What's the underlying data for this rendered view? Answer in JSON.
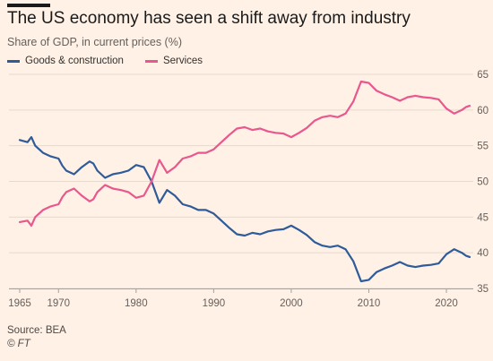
{
  "page": {
    "title": "The US economy has seen a shift away from industry",
    "subtitle": "Share of GDP, in current prices (%)",
    "source": "Source: BEA",
    "credit": "© FT"
  },
  "chart_data": {
    "type": "line",
    "title": "The US economy has seen a shift away from industry",
    "subtitle": "Share of GDP, in current prices (%)",
    "xlim": [
      1965,
      2023
    ],
    "ylim": [
      35,
      65
    ],
    "x_ticks": [
      1965,
      1970,
      1980,
      1990,
      2000,
      2010,
      2020
    ],
    "y_ticks": [
      35,
      40,
      45,
      50,
      55,
      60,
      65
    ],
    "grid": "horizontal",
    "legend_position": "top-left",
    "series": [
      {
        "name": "Goods & construction",
        "color": "#2e5b9a",
        "x": [
          1965,
          1966,
          1966.5,
          1967,
          1968,
          1969,
          1970,
          1970.5,
          1971,
          1972,
          1973,
          1974,
          1974.5,
          1975,
          1976,
          1977,
          1978,
          1979,
          1980,
          1981,
          1982,
          1983,
          1984,
          1985,
          1986,
          1987,
          1988,
          1989,
          1990,
          1991,
          1992,
          1993,
          1994,
          1995,
          1996,
          1997,
          1998,
          1999,
          2000,
          2001,
          2002,
          2003,
          2004,
          2005,
          2006,
          2007,
          2008,
          2009,
          2010,
          2011,
          2012,
          2013,
          2014,
          2015,
          2016,
          2017,
          2018,
          2019,
          2020,
          2021,
          2022,
          2022.5,
          2023
        ],
        "y": [
          55.8,
          55.5,
          56.2,
          55.0,
          54.0,
          53.5,
          53.2,
          52.2,
          51.5,
          51.0,
          52.0,
          52.8,
          52.5,
          51.5,
          50.5,
          51.0,
          51.2,
          51.5,
          52.3,
          52.0,
          50.0,
          47.0,
          48.8,
          48.0,
          46.8,
          46.5,
          46.0,
          46.0,
          45.5,
          44.5,
          43.5,
          42.6,
          42.4,
          42.8,
          42.6,
          43.0,
          43.2,
          43.3,
          43.8,
          43.2,
          42.5,
          41.5,
          41.0,
          40.8,
          41.0,
          40.5,
          38.8,
          36.0,
          36.2,
          37.3,
          37.8,
          38.2,
          38.7,
          38.2,
          38.0,
          38.2,
          38.3,
          38.5,
          39.8,
          40.5,
          40.0,
          39.6,
          39.4
        ]
      },
      {
        "name": "Services",
        "color": "#e8578e",
        "x": [
          1965,
          1966,
          1966.5,
          1967,
          1968,
          1969,
          1970,
          1970.5,
          1971,
          1972,
          1973,
          1974,
          1974.5,
          1975,
          1976,
          1977,
          1978,
          1979,
          1980,
          1981,
          1982,
          1983,
          1984,
          1985,
          1986,
          1987,
          1988,
          1989,
          1990,
          1991,
          1992,
          1993,
          1994,
          1995,
          1996,
          1997,
          1998,
          1999,
          2000,
          2001,
          2002,
          2003,
          2004,
          2005,
          2006,
          2007,
          2008,
          2009,
          2010,
          2011,
          2012,
          2013,
          2014,
          2015,
          2016,
          2017,
          2018,
          2019,
          2020,
          2021,
          2022,
          2022.5,
          2023
        ],
        "y": [
          44.3,
          44.5,
          43.8,
          45.0,
          46.0,
          46.5,
          46.8,
          47.8,
          48.5,
          49.0,
          48.0,
          47.2,
          47.5,
          48.5,
          49.5,
          49.0,
          48.8,
          48.5,
          47.7,
          48.0,
          50.0,
          53.0,
          51.2,
          52.0,
          53.2,
          53.5,
          54.0,
          54.0,
          54.5,
          55.5,
          56.5,
          57.4,
          57.6,
          57.2,
          57.4,
          57.0,
          56.8,
          56.7,
          56.2,
          56.8,
          57.5,
          58.5,
          59.0,
          59.2,
          59.0,
          59.5,
          61.2,
          64.0,
          63.8,
          62.7,
          62.2,
          61.8,
          61.3,
          61.8,
          62.0,
          61.8,
          61.7,
          61.5,
          60.2,
          59.5,
          60.0,
          60.4,
          60.6
        ]
      }
    ]
  }
}
